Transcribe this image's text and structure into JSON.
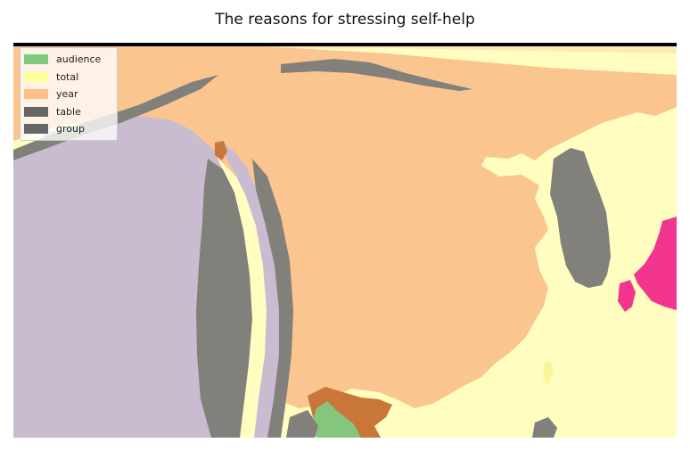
{
  "map": {
    "title": "The reasons for stressing self-help",
    "legend": [
      {
        "label": "audience",
        "color": "#7fc97f"
      },
      {
        "label": "total",
        "color": "#ffff99"
      },
      {
        "label": "year",
        "color": "#fdc086"
      },
      {
        "label": "table",
        "color": "#666666"
      },
      {
        "label": "group",
        "color": "#666666"
      }
    ],
    "colors": {
      "background_land": "#fffdc0",
      "year_region": "#fbc58f",
      "lavender_region": "#c9bcd0",
      "gray_region": "#82807a",
      "brown_region": "#c9763a",
      "green_region": "#86c57e",
      "pink_region": "#f23690",
      "yellow_region": "#fbf59a",
      "top_border": "#000000"
    }
  }
}
